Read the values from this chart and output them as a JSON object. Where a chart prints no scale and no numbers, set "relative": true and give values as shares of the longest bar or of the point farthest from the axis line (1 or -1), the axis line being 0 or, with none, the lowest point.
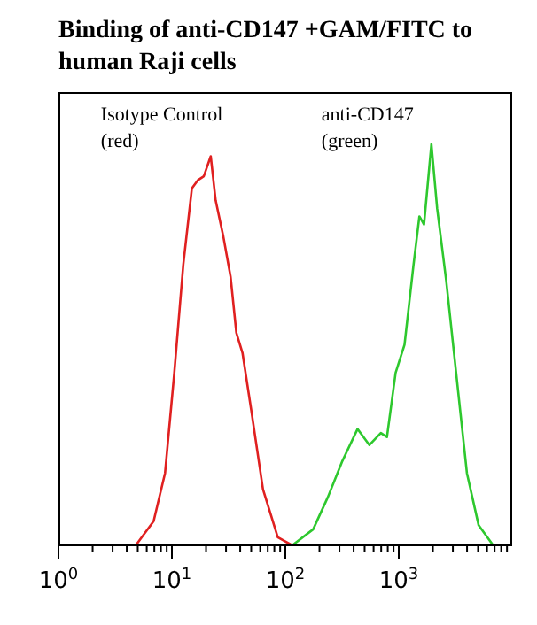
{
  "chart_data": {
    "type": "line",
    "title": "Binding of anti-CD147 +GAM/FITC to human Raji cells",
    "relative": true,
    "log": "x",
    "grid": false,
    "legend": false,
    "marker": "none",
    "line_style": "solid",
    "xlim": [
      1,
      10000
    ],
    "xticks": [
      {
        "value": 1,
        "label": "10$^{0}$"
      },
      {
        "value": 2,
        "label": null
      },
      {
        "value": 3,
        "label": null
      },
      {
        "value": 4,
        "label": null
      },
      {
        "value": 5,
        "label": null
      },
      {
        "value": 6,
        "label": null
      },
      {
        "value": 7,
        "label": null
      },
      {
        "value": 8,
        "label": null
      },
      {
        "value": 9,
        "label": null
      },
      {
        "value": 10,
        "label": "10$^{1}$"
      },
      {
        "value": 20,
        "label": null
      },
      {
        "value": 30,
        "label": null
      },
      {
        "value": 40,
        "label": null
      },
      {
        "value": 50,
        "label": null
      },
      {
        "value": 60,
        "label": null
      },
      {
        "value": 70,
        "label": null
      },
      {
        "value": 80,
        "label": null
      },
      {
        "value": 90,
        "label": null
      },
      {
        "value": 100,
        "label": "10$^{2}$"
      },
      {
        "value": 200,
        "label": null
      },
      {
        "value": 300,
        "label": null
      },
      {
        "value": 400,
        "label": null
      },
      {
        "value": 500,
        "label": null
      },
      {
        "value": 600,
        "label": null
      },
      {
        "value": 700,
        "label": null
      },
      {
        "value": 800,
        "label": null
      },
      {
        "value": 900,
        "label": null
      },
      {
        "value": 1000,
        "label": "10$^{3}$"
      },
      {
        "value": 2000,
        "label": null
      },
      {
        "value": 3000,
        "label": null
      },
      {
        "value": 4000,
        "label": null
      },
      {
        "value": 5000,
        "label": null
      },
      {
        "value": 6000,
        "label": null
      },
      {
        "value": 7000,
        "label": null
      },
      {
        "value": 8000,
        "label": null
      },
      {
        "value": 9000,
        "label": null
      }
    ],
    "series": [
      {
        "name": "Isotype Control (red)",
        "color": "#e02020",
        "x": [
          4.8,
          6.9,
          8.7,
          10.5,
          12.6,
          15,
          16.9,
          19.1,
          22,
          24.3,
          28.4,
          32.9,
          37,
          41.9,
          49.9,
          63.5,
          85.8,
          115
        ],
        "values": [
          0,
          0.06,
          0.18,
          0.43,
          0.7,
          0.89,
          0.91,
          0.92,
          0.97,
          0.86,
          0.77,
          0.67,
          0.53,
          0.48,
          0.34,
          0.14,
          0.02,
          0
        ]
      },
      {
        "name": "anti-CD147 (green)",
        "color": "#2ec82e",
        "x": [
          115,
          176,
          237,
          318,
          433,
          551,
          695,
          787,
          938,
          1124,
          1350,
          1520,
          1670,
          1940,
          2180,
          2620,
          3150,
          3990,
          5060,
          6800
        ],
        "values": [
          0,
          0.04,
          0.12,
          0.21,
          0.29,
          0.25,
          0.28,
          0.27,
          0.43,
          0.5,
          0.7,
          0.82,
          0.8,
          1,
          0.84,
          0.66,
          0.45,
          0.18,
          0.05,
          0
        ]
      }
    ]
  }
}
